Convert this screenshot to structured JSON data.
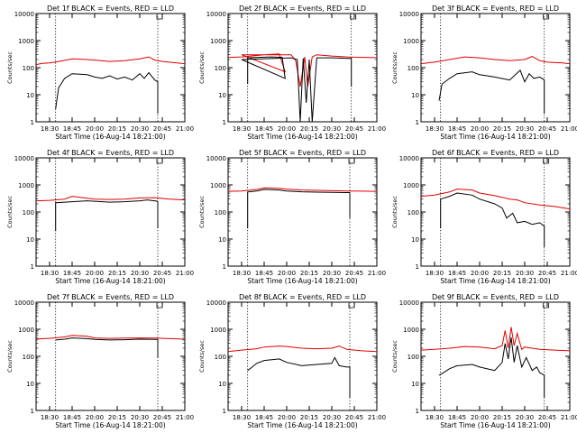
{
  "colors": {
    "events": "#000000",
    "lld": "#e00000",
    "axis": "#000000"
  },
  "chart_data": [
    {
      "type": "line",
      "title": "Det 1f BLACK = Events, RED = LLD",
      "xlabel": "Start Time (16-Aug-14 18:21:00)",
      "ylabel": "Counts/sec",
      "yscale": "log",
      "xlim": [
        "18:21",
        "21:00"
      ],
      "ylim": [
        1,
        10000
      ],
      "x_ticks": [
        "18:30",
        "18:45",
        "20:00",
        "20:15",
        "20:30",
        "20:45",
        "21:00"
      ],
      "y_ticks": [
        "1",
        "10",
        "100",
        "1000",
        "10000"
      ],
      "vlines": [
        "18:34",
        "20:42"
      ],
      "series": [
        {
          "name": "BLACK = Events",
          "x": [
            "18:34",
            "18:36",
            "18:40",
            "18:45",
            "18:55",
            "20:00",
            "20:05",
            "20:10",
            "20:15",
            "20:20",
            "20:25",
            "20:30",
            "20:33",
            "20:36",
            "20:40",
            "20:42",
            "20:42"
          ],
          "values": [
            3,
            18,
            40,
            60,
            55,
            45,
            40,
            50,
            38,
            45,
            35,
            60,
            40,
            65,
            35,
            30,
            2
          ]
        },
        {
          "name": "RED = LLD",
          "x": [
            "18:21",
            "18:25",
            "18:30",
            "18:35",
            "18:45",
            "18:55",
            "20:00",
            "20:10",
            "20:20",
            "20:30",
            "20:36",
            "20:40",
            "20:45",
            "20:55",
            "21:00"
          ],
          "values": [
            130,
            145,
            150,
            165,
            210,
            200,
            190,
            170,
            180,
            210,
            250,
            190,
            170,
            150,
            140
          ]
        }
      ]
    },
    {
      "type": "line",
      "title": "Det 2f BLACK = Events, RED = LLD",
      "xlabel": "Start Time (16-Aug-14 18:21:00)",
      "ylabel": "Counts/sec",
      "yscale": "log",
      "xlim": [
        "18:21",
        "21:00"
      ],
      "ylim": [
        1,
        10000
      ],
      "x_ticks": [
        "18:30",
        "18:45",
        "20:00",
        "20:15",
        "20:30",
        "20:45",
        "21:00"
      ],
      "y_ticks": [
        "1",
        "10",
        "100",
        "1000",
        "10000"
      ],
      "vlines": [
        "18:34",
        "20:43"
      ],
      "series": [
        {
          "name": "BLACK = Events",
          "x": [
            "18:34",
            "18:34",
            "18:40",
            "18:50",
            "18:57",
            "18:59",
            "19:01",
            "20:03",
            "20:07",
            "20:09",
            "20:11",
            "20:13",
            "20:15",
            "20:17",
            "20:20",
            "20:30",
            "20:40",
            "20:43",
            "20:43"
          ],
          "values": [
            25,
            230,
            240,
            250,
            240,
            40,
            200,
            230,
            200,
            1,
            220,
            5,
            200,
            1,
            230,
            230,
            220,
            220,
            20
          ]
        },
        {
          "name": "RED = LLD",
          "x": [
            "18:21",
            "18:30",
            "18:45",
            "18:55",
            "18:59",
            "19:02",
            "20:03",
            "20:06",
            "20:09",
            "20:12",
            "20:14",
            "20:17",
            "20:20",
            "20:30",
            "20:40",
            "20:50",
            "21:00"
          ],
          "values": [
            240,
            250,
            300,
            320,
            70,
            300,
            300,
            180,
            20,
            250,
            20,
            250,
            300,
            270,
            250,
            240,
            235
          ]
        }
      ]
    },
    {
      "type": "line",
      "title": "Det 3f BLACK = Events, RED = LLD",
      "xlabel": "Start Time (16-Aug-14 18:21:00)",
      "ylabel": "Counts/sec",
      "yscale": "log",
      "xlim": [
        "18:21",
        "21:00"
      ],
      "ylim": [
        1,
        10000
      ],
      "x_ticks": [
        "18:30",
        "18:45",
        "20:00",
        "20:15",
        "20:30",
        "20:45",
        "21:00"
      ],
      "y_ticks": [
        "1",
        "10",
        "100",
        "1000",
        "10000"
      ],
      "vlines": [
        "18:34",
        "20:43"
      ],
      "series": [
        {
          "name": "BLACK = Events",
          "x": [
            "18:33",
            "18:35",
            "18:40",
            "18:45",
            "18:55",
            "20:00",
            "20:10",
            "20:20",
            "20:27",
            "20:30",
            "20:33",
            "20:36",
            "20:40",
            "20:43",
            "20:43"
          ],
          "values": [
            6,
            25,
            40,
            60,
            70,
            55,
            45,
            35,
            80,
            30,
            60,
            40,
            45,
            35,
            2
          ]
        },
        {
          "name": "RED = LLD",
          "x": [
            "18:21",
            "18:30",
            "18:40",
            "18:50",
            "20:00",
            "20:10",
            "20:20",
            "20:30",
            "20:35",
            "20:40",
            "20:45",
            "20:55",
            "21:00"
          ],
          "values": [
            140,
            160,
            200,
            250,
            230,
            200,
            180,
            200,
            260,
            180,
            160,
            150,
            140
          ]
        }
      ]
    },
    {
      "type": "line",
      "title": "Det 4f BLACK = Events, RED = LLD",
      "xlabel": "Start Time (16-Aug-14 18:21:00)",
      "ylabel": "Counts/sec",
      "yscale": "log",
      "xlim": [
        "18:21",
        "21:00"
      ],
      "ylim": [
        1,
        10000
      ],
      "x_ticks": [
        "18:30",
        "18:45",
        "20:00",
        "20:15",
        "20:30",
        "20:45",
        "21:00"
      ],
      "y_ticks": [
        "1",
        "10",
        "100",
        "1000",
        "10000"
      ],
      "vlines": [
        "18:34",
        "20:42"
      ],
      "series": [
        {
          "name": "BLACK = Events",
          "x": [
            "18:34",
            "18:34",
            "18:45",
            "18:55",
            "20:00",
            "20:10",
            "20:20",
            "20:30",
            "20:35",
            "20:42",
            "20:42"
          ],
          "values": [
            20,
            220,
            240,
            260,
            250,
            230,
            240,
            260,
            280,
            250,
            25
          ]
        },
        {
          "name": "RED = LLD",
          "x": [
            "18:21",
            "18:30",
            "18:40",
            "18:45",
            "18:55",
            "20:00",
            "20:10",
            "20:20",
            "20:30",
            "20:40",
            "20:50",
            "21:00"
          ],
          "values": [
            260,
            270,
            300,
            380,
            320,
            300,
            290,
            300,
            330,
            340,
            300,
            280
          ]
        }
      ]
    },
    {
      "type": "line",
      "title": "Det 5f BLACK = Events, RED = LLD",
      "xlabel": "Start Time (16-Aug-14 18:21:00)",
      "ylabel": "Counts/sec",
      "yscale": "log",
      "xlim": [
        "18:21",
        "21:00"
      ],
      "ylim": [
        1,
        10000
      ],
      "x_ticks": [
        "18:30",
        "18:45",
        "20:00",
        "20:15",
        "20:30",
        "20:45",
        "21:00"
      ],
      "y_ticks": [
        "1",
        "10",
        "100",
        "1000",
        "10000"
      ],
      "vlines": [
        "18:34",
        "20:42"
      ],
      "series": [
        {
          "name": "BLACK = Events",
          "x": [
            "18:34",
            "18:34",
            "18:40",
            "18:45",
            "18:55",
            "20:00",
            "20:10",
            "20:20",
            "20:30",
            "20:40",
            "20:42",
            "20:42"
          ],
          "values": [
            25,
            550,
            600,
            680,
            650,
            600,
            560,
            540,
            530,
            520,
            520,
            60
          ]
        },
        {
          "name": "RED = LLD",
          "x": [
            "18:21",
            "18:30",
            "18:40",
            "18:45",
            "18:55",
            "20:00",
            "20:10",
            "20:20",
            "20:30",
            "20:40",
            "20:50",
            "21:00"
          ],
          "values": [
            580,
            600,
            680,
            780,
            750,
            700,
            650,
            630,
            610,
            600,
            590,
            580
          ]
        }
      ]
    },
    {
      "type": "line",
      "title": "Det 6f BLACK = Events, RED = LLD",
      "xlabel": "Start Time (16-Aug-14 18:21:00)",
      "ylabel": "Counts/sec",
      "yscale": "log",
      "xlim": [
        "18:21",
        "21:00"
      ],
      "ylim": [
        1,
        10000
      ],
      "x_ticks": [
        "18:30",
        "18:45",
        "20:00",
        "20:15",
        "20:30",
        "20:45",
        "21:00"
      ],
      "y_ticks": [
        "1",
        "10",
        "100",
        "1000",
        "10000"
      ],
      "vlines": [
        "18:34",
        "20:43"
      ],
      "series": [
        {
          "name": "BLACK = Events",
          "x": [
            "18:34",
            "18:34",
            "18:40",
            "18:45",
            "18:55",
            "20:00",
            "20:10",
            "20:15",
            "20:18",
            "20:22",
            "20:25",
            "20:30",
            "20:35",
            "20:40",
            "20:43",
            "20:43"
          ],
          "values": [
            25,
            300,
            380,
            500,
            420,
            300,
            200,
            140,
            60,
            90,
            40,
            45,
            35,
            40,
            30,
            5
          ]
        },
        {
          "name": "RED = LLD",
          "x": [
            "18:21",
            "18:30",
            "18:40",
            "18:45",
            "18:55",
            "20:00",
            "20:10",
            "20:15",
            "20:20",
            "20:25",
            "20:30",
            "20:40",
            "20:50",
            "21:00"
          ],
          "values": [
            380,
            420,
            550,
            700,
            650,
            500,
            400,
            350,
            300,
            280,
            220,
            180,
            160,
            130
          ]
        }
      ]
    },
    {
      "type": "line",
      "title": "Det 7f BLACK = Events, RED = LLD",
      "xlabel": "Start Time (16-Aug-14 18:21:00)",
      "ylabel": "Counts/sec",
      "yscale": "log",
      "xlim": [
        "18:21",
        "21:00"
      ],
      "ylim": [
        1,
        10000
      ],
      "x_ticks": [
        "18:30",
        "18:45",
        "20:00",
        "20:15",
        "20:30",
        "20:45",
        "21:00"
      ],
      "y_ticks": [
        "1",
        "10",
        "100",
        "1000",
        "10000"
      ],
      "vlines": [
        "18:34",
        "20:42"
      ],
      "series": [
        {
          "name": "BLACK = Events",
          "x": [
            "18:34",
            "18:40",
            "18:45",
            "18:55",
            "20:00",
            "20:10",
            "20:20",
            "20:30",
            "20:40",
            "20:42",
            "20:42"
          ],
          "values": [
            400,
            430,
            480,
            450,
            420,
            400,
            410,
            430,
            420,
            420,
            90
          ]
        },
        {
          "name": "RED = LLD",
          "x": [
            "18:21",
            "18:30",
            "18:40",
            "18:45",
            "18:55",
            "20:00",
            "20:10",
            "20:20",
            "20:30",
            "20:40",
            "20:50",
            "21:00"
          ],
          "values": [
            440,
            460,
            520,
            600,
            550,
            480,
            460,
            470,
            480,
            470,
            450,
            430
          ]
        }
      ]
    },
    {
      "type": "line",
      "title": "Det 8f BLACK = Events, RED = LLD",
      "xlabel": "Start Time (16-Aug-14 18:21:00)",
      "ylabel": "Counts/sec",
      "yscale": "log",
      "xlim": [
        "18:21",
        "21:00"
      ],
      "ylim": [
        1,
        10000
      ],
      "x_ticks": [
        "18:30",
        "18:45",
        "20:00",
        "20:15",
        "20:30",
        "20:45",
        "21:00"
      ],
      "y_ticks": [
        "1",
        "10",
        "100",
        "1000",
        "10000"
      ],
      "vlines": [
        "18:34",
        "20:42"
      ],
      "series": [
        {
          "name": "BLACK = Events",
          "x": [
            "18:34",
            "18:37",
            "18:40",
            "18:45",
            "18:55",
            "20:00",
            "20:10",
            "20:20",
            "20:30",
            "20:32",
            "20:35",
            "20:40",
            "20:42",
            "20:42"
          ],
          "values": [
            30,
            40,
            55,
            70,
            80,
            60,
            45,
            50,
            55,
            90,
            45,
            40,
            40,
            3
          ]
        },
        {
          "name": "RED = LLD",
          "x": [
            "18:21",
            "18:30",
            "18:40",
            "18:45",
            "18:55",
            "20:00",
            "20:10",
            "20:20",
            "20:30",
            "20:35",
            "20:40",
            "20:50",
            "21:00"
          ],
          "values": [
            150,
            170,
            190,
            220,
            240,
            230,
            200,
            190,
            200,
            240,
            180,
            160,
            150
          ]
        }
      ]
    },
    {
      "type": "line",
      "title": "Det 9f BLACK = Events, RED = LLD",
      "xlabel": "Start Time (16-Aug-14 18:21:00)",
      "ylabel": "Counts/sec",
      "yscale": "log",
      "xlim": [
        "18:21",
        "21:00"
      ],
      "ylim": [
        1,
        10000
      ],
      "x_ticks": [
        "18:30",
        "18:45",
        "20:00",
        "20:15",
        "20:30",
        "20:45",
        "21:00"
      ],
      "y_ticks": [
        "1",
        "10",
        "100",
        "1000",
        "10000"
      ],
      "vlines": [
        "18:34",
        "20:43"
      ],
      "series": [
        {
          "name": "BLACK = Events",
          "x": [
            "18:33",
            "18:36",
            "18:40",
            "18:45",
            "18:55",
            "20:00",
            "20:10",
            "20:15",
            "20:17",
            "20:19",
            "20:21",
            "20:23",
            "20:25",
            "20:28",
            "20:31",
            "20:35",
            "20:38",
            "20:40",
            "20:43",
            "20:43"
          ],
          "values": [
            20,
            25,
            35,
            45,
            50,
            40,
            30,
            60,
            300,
            80,
            500,
            60,
            250,
            40,
            90,
            30,
            40,
            25,
            20,
            3
          ]
        },
        {
          "name": "RED = LLD",
          "x": [
            "18:21",
            "18:30",
            "18:40",
            "18:50",
            "20:00",
            "20:10",
            "20:15",
            "20:17",
            "20:19",
            "20:21",
            "20:23",
            "20:25",
            "20:28",
            "20:30",
            "20:35",
            "20:40",
            "20:50",
            "21:00"
          ],
          "values": [
            170,
            180,
            200,
            230,
            220,
            190,
            250,
            900,
            200,
            1200,
            250,
            700,
            180,
            220,
            200,
            180,
            170,
            160
          ]
        }
      ]
    }
  ]
}
